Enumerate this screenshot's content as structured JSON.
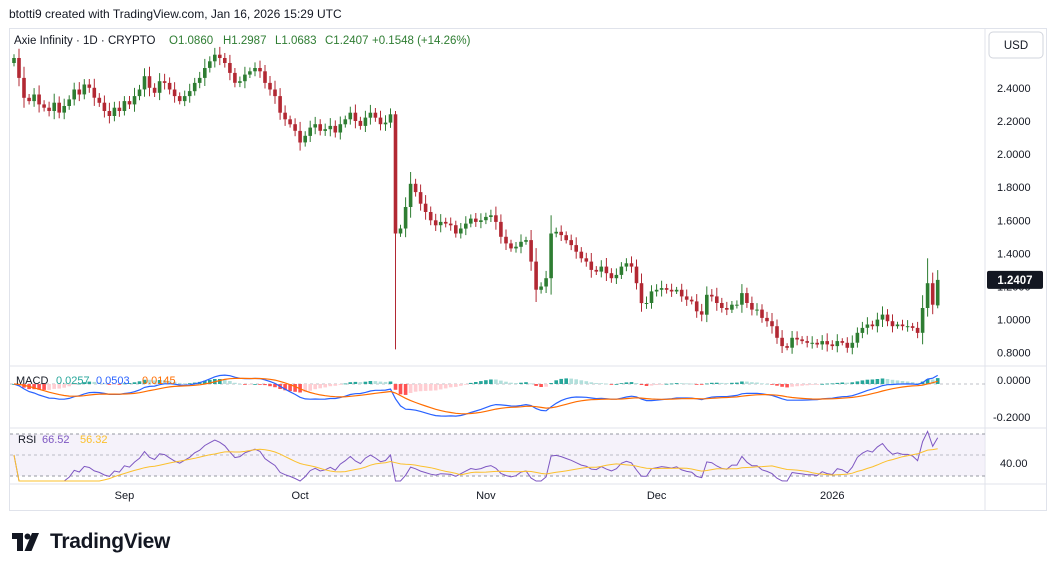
{
  "header": {
    "caption": "btotti9 created with TradingView.com, Jan 16, 2026 15:29 UTC"
  },
  "legend": {
    "symbol": "Axie Infinity · 1D · CRYPTO",
    "open": "O1.0860",
    "high": "H1.2987",
    "low": "L1.0683",
    "close": "C1.2407",
    "change": "+0.1548 (+14.26%)"
  },
  "currency_button": "USD",
  "price_badge": "1.2407",
  "macd_legend": {
    "label": "MACD",
    "hist": "0.0257",
    "macd": "0.0503",
    "signal": "0.0145"
  },
  "rsi_legend": {
    "label": "RSI",
    "rsi": "66.52",
    "ma": "56.32"
  },
  "footer": {
    "brand": "TradingView"
  },
  "colors": {
    "up": "#26a69a",
    "down": "#b22833",
    "upCandle": "#2e7d32",
    "macd": "#2962ff",
    "signal": "#ff6d00",
    "rsi": "#7e57c2",
    "rsiMa": "#fbc02d"
  },
  "chart_data": {
    "type": "candlestick",
    "x_axis": {
      "tick_labels": [
        "Sep",
        "Oct",
        "Nov",
        "Dec",
        "2026"
      ]
    },
    "y_axis": {
      "tick_labels": [
        "2.4000",
        "2.2000",
        "2.0000",
        "1.8000",
        "1.6000",
        "1.4000",
        "1.2000",
        "1.0000",
        "0.8000"
      ],
      "range": [
        0.78,
        2.55
      ]
    },
    "macd_axis": {
      "tick_labels": [
        "0.0000",
        "-0.2000"
      ]
    },
    "rsi_axis": {
      "tick_labels": [
        "40.00"
      ]
    },
    "close": [
      2.58,
      2.46,
      2.34,
      2.32,
      2.36,
      2.3,
      2.28,
      2.26,
      2.31,
      2.25,
      2.29,
      2.33,
      2.39,
      2.36,
      2.42,
      2.4,
      2.34,
      2.31,
      2.26,
      2.23,
      2.28,
      2.26,
      2.32,
      2.3,
      2.35,
      2.39,
      2.47,
      2.4,
      2.37,
      2.44,
      2.43,
      2.39,
      2.35,
      2.32,
      2.35,
      2.38,
      2.43,
      2.46,
      2.52,
      2.56,
      2.6,
      2.58,
      2.55,
      2.49,
      2.43,
      2.44,
      2.48,
      2.5,
      2.52,
      2.5,
      2.43,
      2.39,
      2.35,
      2.25,
      2.21,
      2.18,
      2.14,
      2.07,
      2.11,
      2.16,
      2.18,
      2.14,
      2.15,
      2.17,
      2.13,
      2.18,
      2.21,
      2.25,
      2.2,
      2.17,
      2.22,
      2.25,
      2.22,
      2.18,
      2.19,
      2.24,
      1.52,
      1.55,
      1.68,
      1.82,
      1.77,
      1.7,
      1.65,
      1.6,
      1.57,
      1.59,
      1.58,
      1.57,
      1.52,
      1.55,
      1.58,
      1.61,
      1.59,
      1.6,
      1.62,
      1.63,
      1.59,
      1.5,
      1.46,
      1.43,
      1.44,
      1.47,
      1.48,
      1.35,
      1.18,
      1.2,
      1.25,
      1.52,
      1.53,
      1.51,
      1.48,
      1.45,
      1.41,
      1.37,
      1.35,
      1.3,
      1.29,
      1.32,
      1.28,
      1.25,
      1.27,
      1.32,
      1.34,
      1.32,
      1.22,
      1.1,
      1.1,
      1.17,
      1.18,
      1.19,
      1.18,
      1.17,
      1.18,
      1.14,
      1.12,
      1.11,
      1.05,
      1.03,
      1.15,
      1.14,
      1.1,
      1.07,
      1.06,
      1.09,
      1.09,
      1.16,
      1.1,
      1.06,
      1.06,
      1.01,
      0.99,
      0.96,
      0.89,
      0.84,
      0.83,
      0.89,
      0.88,
      0.87,
      0.86,
      0.86,
      0.85,
      0.87,
      0.85,
      0.84,
      0.87,
      0.86,
      0.83,
      0.86,
      0.92,
      0.95,
      0.97,
      0.96,
      1.0,
      1.03,
      0.99,
      0.96,
      0.97,
      0.96,
      0.96,
      0.95,
      0.92,
      1.07,
      1.22,
      1.09,
      1.24
    ]
  }
}
